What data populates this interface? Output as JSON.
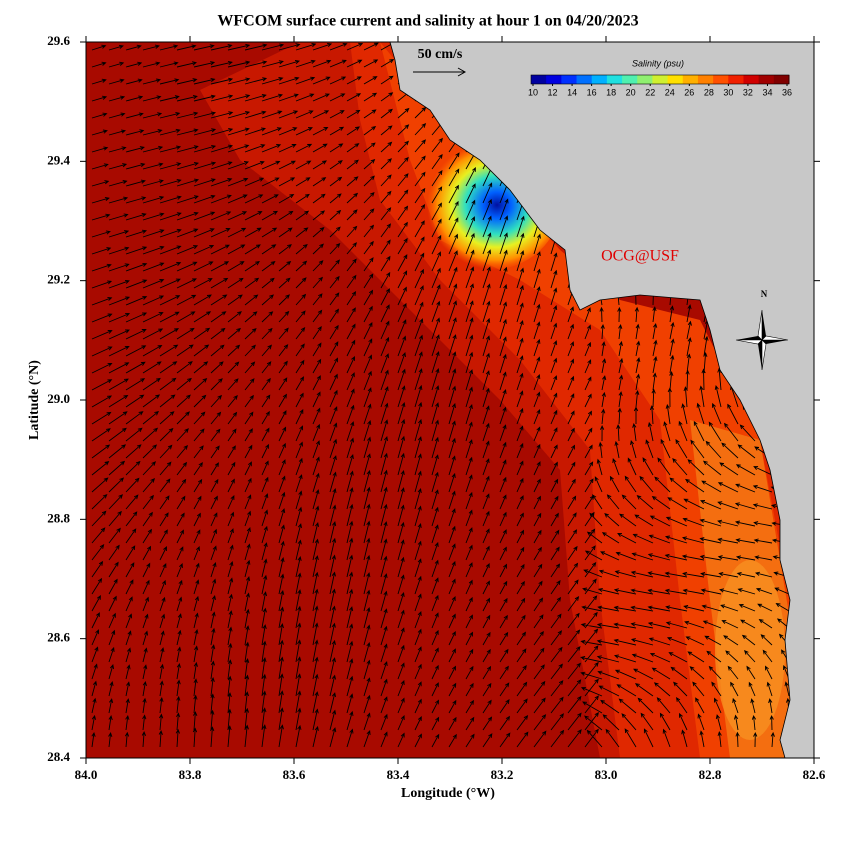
{
  "title": "WFCOM surface current and salinity at hour 1 on 04/20/2023",
  "x_axis": {
    "label": "Longitude (°W)",
    "lim": [
      84,
      82.6
    ],
    "ticks": [
      {
        "value": 84,
        "label": "84.0"
      },
      83.8,
      83.6,
      83.4,
      83.2,
      {
        "value": 83,
        "label": "83.0"
      },
      82.8,
      82.6
    ]
  },
  "y_axis": {
    "label": "Latitude (°N)",
    "lim": [
      28.4,
      29.6
    ],
    "ticks": [
      28.4,
      28.6,
      28.8,
      {
        "value": 29,
        "label": "29.0"
      },
      29.2,
      29.4,
      29.6
    ]
  },
  "scale_label": "50 cm/s",
  "colorbar": {
    "label": "Salinity (psu)",
    "lim": [
      10,
      36
    ],
    "ticks": [
      10,
      12,
      14,
      16,
      18,
      20,
      22,
      24,
      26,
      28,
      30,
      32,
      34,
      36
    ]
  },
  "credit": "OCG@USF",
  "compass": "N"
}
